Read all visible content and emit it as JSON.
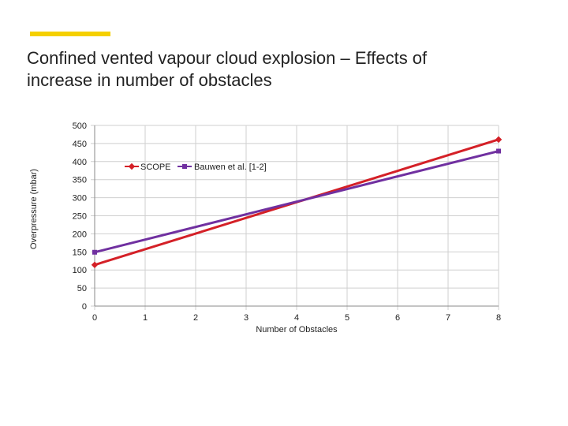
{
  "slide": {
    "title_line1": "Confined vented vapour cloud explosion – Effects of",
    "title_line2": "increase in number of obstacles",
    "accent_color": "#f5d000"
  },
  "chart_data": {
    "type": "line",
    "title": "",
    "xlabel": "Number of Obstacles",
    "ylabel": "Overpressure (mbar)",
    "x": [
      0,
      1,
      2,
      3,
      4,
      5,
      6,
      7,
      8
    ],
    "x_ticks": [
      "0",
      "1",
      "2",
      "3",
      "4",
      "5",
      "6",
      "7",
      "8"
    ],
    "y_ticks": [
      "0",
      "50",
      "100",
      "150",
      "200",
      "250",
      "300",
      "350",
      "400",
      "450",
      "500"
    ],
    "xlim": [
      0,
      8
    ],
    "ylim": [
      0,
      500
    ],
    "grid": true,
    "legend_position": "top-center",
    "series": [
      {
        "name": "SCOPE",
        "color": "#d42027",
        "marker": "diamond",
        "x": [
          0,
          8
        ],
        "values": [
          114,
          461
        ]
      },
      {
        "name": "Bauwen et al. [1-2]",
        "color": "#7030a0",
        "marker": "square",
        "x": [
          0,
          8
        ],
        "values": [
          149,
          429
        ]
      }
    ]
  }
}
